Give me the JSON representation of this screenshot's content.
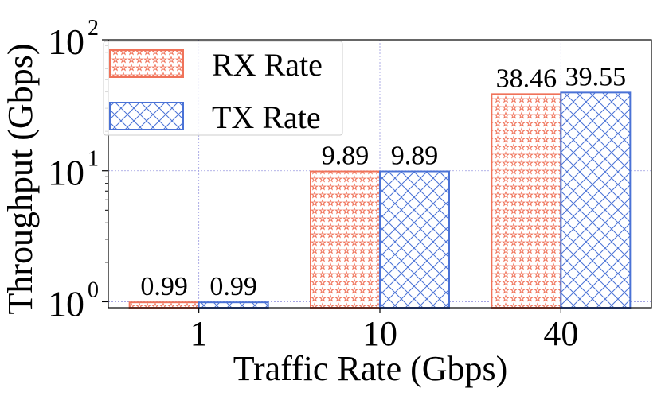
{
  "chart_data": {
    "type": "bar",
    "title": "",
    "xlabel": "Traffic Rate (Gbps)",
    "ylabel": "Throughput (Gbps)",
    "yscale": "log",
    "ylim": [
      0.9,
      100
    ],
    "grid": true,
    "legend_position": "top-left",
    "categories": [
      "1",
      "10",
      "40"
    ],
    "yticks": [
      {
        "value": 1,
        "base": "10",
        "exp": "0"
      },
      {
        "value": 10,
        "base": "10",
        "exp": "1"
      },
      {
        "value": 100,
        "base": "10",
        "exp": "2"
      }
    ],
    "series": [
      {
        "name": "RX Rate",
        "values": [
          0.99,
          9.89,
          38.46
        ],
        "labels": [
          "0.99",
          "9.89",
          "38.46"
        ],
        "color": "#f0735a",
        "hatch": "stars"
      },
      {
        "name": "TX Rate",
        "values": [
          0.99,
          9.89,
          39.55
        ],
        "labels": [
          "0.99",
          "9.89",
          "39.55"
        ],
        "color": "#4a72d6",
        "hatch": "cross"
      }
    ]
  }
}
